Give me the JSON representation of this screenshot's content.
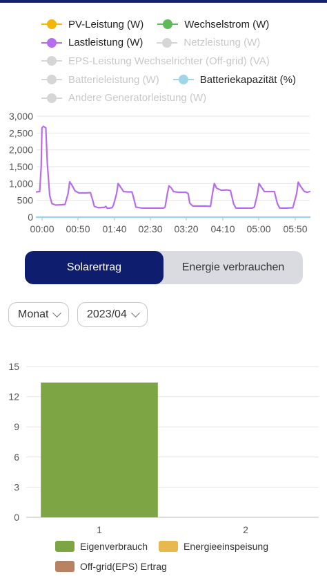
{
  "line_legend": [
    {
      "label": "PV-Leistung (W)",
      "color": "#f2b705",
      "enabled": true
    },
    {
      "label": "Wechselstrom (W)",
      "color": "#5fb85a",
      "enabled": true
    },
    {
      "label": "Lastleistung (W)",
      "color": "#b76cf0",
      "enabled": true
    },
    {
      "label": "Netzleistung (W)",
      "color": "#d0d0d0",
      "enabled": false
    },
    {
      "label": "EPS-Leistung Wechselrichter (Off-grid) (VA)",
      "color": "#d0d0d0",
      "enabled": false
    },
    {
      "label": "Batterieleistung (W)",
      "color": "#d0d0d0",
      "enabled": false
    },
    {
      "label": "Batteriekapazität (%)",
      "color": "#9ed6e8",
      "enabled": true
    },
    {
      "label": "Andere Generatorleistung (W)",
      "color": "#d0d0d0",
      "enabled": false
    }
  ],
  "toggle": {
    "solar_label": "Solarertrag",
    "consume_label": "Energie verbrauchen"
  },
  "selects": {
    "period": "Monat",
    "date": "2023/04"
  },
  "bar_legend": [
    {
      "label": "Eigenverbrauch",
      "color": "#7ea544"
    },
    {
      "label": "Energieeinspeisung",
      "color": "#e6b84e"
    },
    {
      "label": "Off-grid(EPS) Ertrag",
      "color": "#b98363"
    }
  ],
  "chart_data": [
    {
      "type": "line",
      "x_tick_labels": [
        "00:00",
        "00:50",
        "01:40",
        "02:30",
        "03:20",
        "04:10",
        "05:00",
        "05:50"
      ],
      "y_tick_labels": [
        "0",
        "500",
        "1,000",
        "1,500",
        "2,000",
        "2,500",
        "3,000"
      ],
      "ylim": [
        0,
        3000
      ],
      "grid": true,
      "series": [
        {
          "name": "Lastleistung (W)",
          "color": "#b76cf0",
          "points": [
            [
              0,
              750
            ],
            [
              4,
              760
            ],
            [
              6,
              1500
            ],
            [
              7,
              2650
            ],
            [
              9,
              2700
            ],
            [
              12,
              2650
            ],
            [
              14,
              1600
            ],
            [
              17,
              650
            ],
            [
              20,
              400
            ],
            [
              25,
              360
            ],
            [
              33,
              370
            ],
            [
              37,
              380
            ],
            [
              41,
              700
            ],
            [
              43,
              1050
            ],
            [
              46,
              950
            ],
            [
              50,
              780
            ],
            [
              55,
              720
            ],
            [
              64,
              720
            ],
            [
              70,
              730
            ],
            [
              73,
              500
            ],
            [
              75,
              320
            ],
            [
              80,
              280
            ],
            [
              88,
              290
            ],
            [
              90,
              320
            ],
            [
              92,
              260
            ],
            [
              98,
              280
            ],
            [
              100,
              360
            ],
            [
              104,
              700
            ],
            [
              106,
              1000
            ],
            [
              109,
              900
            ],
            [
              113,
              760
            ],
            [
              118,
              750
            ],
            [
              124,
              750
            ],
            [
              127,
              500
            ],
            [
              129,
              300
            ],
            [
              137,
              270
            ],
            [
              165,
              270
            ],
            [
              167,
              300
            ],
            [
              170,
              700
            ],
            [
              172,
              930
            ],
            [
              175,
              870
            ],
            [
              178,
              760
            ],
            [
              184,
              740
            ],
            [
              194,
              740
            ],
            [
              197,
              700
            ],
            [
              199,
              420
            ],
            [
              203,
              330
            ],
            [
              215,
              330
            ],
            [
              220,
              330
            ],
            [
              226,
              320
            ],
            [
              229,
              750
            ],
            [
              231,
              1000
            ],
            [
              234,
              860
            ],
            [
              240,
              800
            ],
            [
              247,
              810
            ],
            [
              252,
              790
            ],
            [
              256,
              400
            ],
            [
              259,
              270
            ],
            [
              271,
              270
            ],
            [
              280,
              270
            ],
            [
              283,
              300
            ],
            [
              287,
              680
            ],
            [
              289,
              1000
            ],
            [
              292,
              900
            ],
            [
              296,
              760
            ],
            [
              302,
              760
            ],
            [
              309,
              760
            ],
            [
              313,
              400
            ],
            [
              316,
              270
            ],
            [
              325,
              270
            ],
            [
              333,
              280
            ],
            [
              338,
              700
            ],
            [
              340,
              1040
            ],
            [
              343,
              920
            ],
            [
              348,
              760
            ],
            [
              352,
              740
            ],
            [
              355,
              760
            ]
          ]
        },
        {
          "name": "Batteriekapazität (%)",
          "color": "#9ed6e8",
          "points": [
            [
              0,
              0
            ],
            [
              355,
              0
            ]
          ]
        }
      ]
    },
    {
      "type": "bar",
      "categories": [
        "1",
        "2"
      ],
      "series": [
        {
          "name": "Eigenverbrauch",
          "values": [
            13.4,
            0
          ]
        },
        {
          "name": "Energieeinspeisung",
          "values": [
            0,
            0
          ]
        },
        {
          "name": "Off-grid(EPS) Ertrag",
          "values": [
            0,
            0
          ]
        }
      ],
      "y_tick_labels": [
        "0",
        "3",
        "6",
        "9",
        "12",
        "15"
      ],
      "ylim": [
        0,
        15
      ],
      "grid": true
    }
  ]
}
